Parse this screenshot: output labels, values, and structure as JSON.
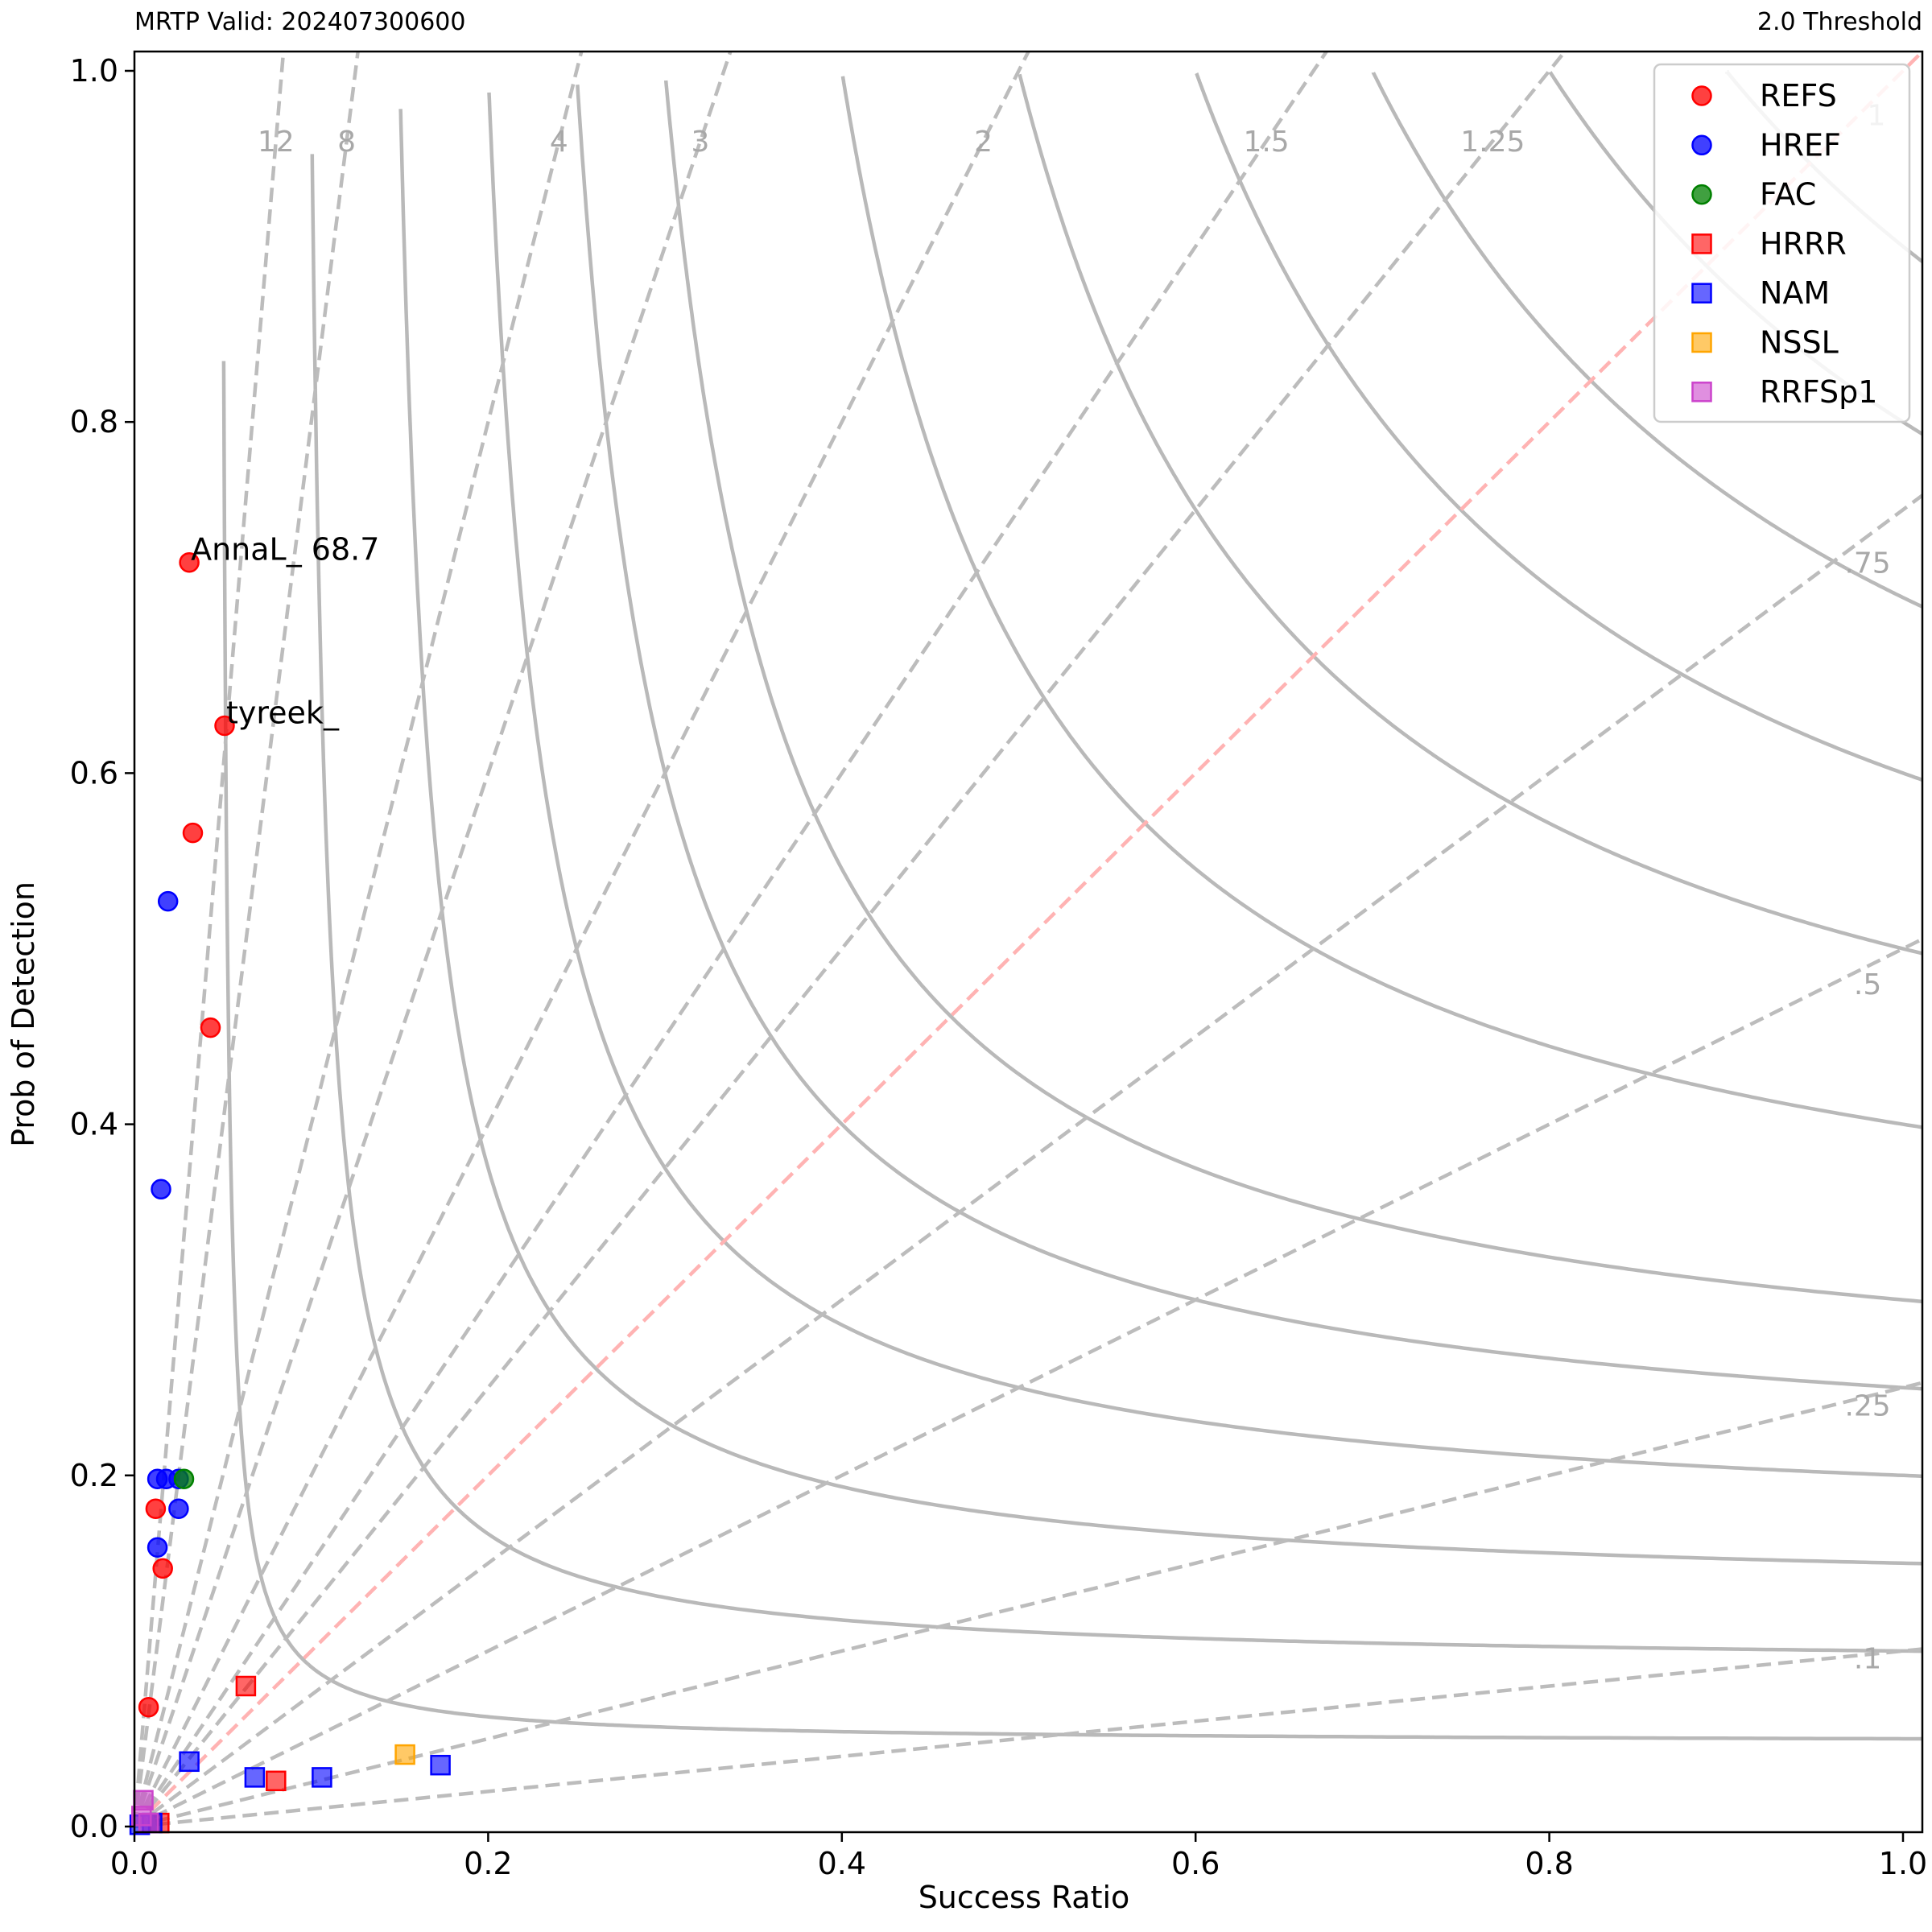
{
  "header": {
    "left_title": "MRTP Valid: 202407300600",
    "right_title": "2.0 Threshold"
  },
  "chart_data": {
    "type": "scatter",
    "xlabel": "Success Ratio",
    "ylabel": "Prob of Detection",
    "xlim": [
      0.0,
      1.0
    ],
    "ylim": [
      0.0,
      1.0
    ],
    "x_ticks": [
      "0.0",
      "0.2",
      "0.4",
      "0.6",
      "0.8",
      "1.0"
    ],
    "y_ticks": [
      "0.0",
      "0.2",
      "0.4",
      "0.6",
      "0.8",
      "1.0"
    ],
    "grid": false,
    "legend_position": "top-right",
    "bias_lines": [
      {
        "value": 12,
        "label": "12"
      },
      {
        "value": 8,
        "label": "8"
      },
      {
        "value": 4,
        "label": "4"
      },
      {
        "value": 3,
        "label": "3"
      },
      {
        "value": 2,
        "label": "2"
      },
      {
        "value": 1.5,
        "label": "1.5"
      },
      {
        "value": 1.25,
        "label": "1.25"
      },
      {
        "value": 1,
        "label": "1"
      },
      {
        "value": 0.75,
        "label": ".75"
      },
      {
        "value": 0.5,
        "label": ".5"
      },
      {
        "value": 0.25,
        "label": ".25"
      },
      {
        "value": 0.1,
        "label": ".1"
      }
    ],
    "csi_contours": [
      0.05,
      0.1,
      0.15,
      0.2,
      0.25,
      0.3,
      0.4,
      0.5,
      0.6,
      0.7,
      0.8,
      0.9
    ],
    "series": [
      {
        "name": "REFS",
        "marker": "circle",
        "color": "#ff0000",
        "points": [
          [
            0.031,
            0.72
          ],
          [
            0.051,
            0.627
          ],
          [
            0.033,
            0.566
          ],
          [
            0.043,
            0.455
          ],
          [
            0.012,
            0.181
          ],
          [
            0.016,
            0.147
          ],
          [
            0.008,
            0.068
          ]
        ]
      },
      {
        "name": "HREF",
        "marker": "circle",
        "color": "#0000ff",
        "points": [
          [
            0.019,
            0.527
          ],
          [
            0.015,
            0.363
          ],
          [
            0.013,
            0.198
          ],
          [
            0.018,
            0.198
          ],
          [
            0.025,
            0.198
          ],
          [
            0.025,
            0.181
          ],
          [
            0.013,
            0.159
          ]
        ]
      },
      {
        "name": "FAC",
        "marker": "circle",
        "color": "#008000",
        "points": [
          [
            0.028,
            0.198
          ]
        ]
      },
      {
        "name": "HRRR",
        "marker": "square",
        "color": "#ff0000",
        "points": [
          [
            0.063,
            0.08
          ],
          [
            0.08,
            0.026
          ],
          [
            0.014,
            0.002
          ]
        ]
      },
      {
        "name": "NAM",
        "marker": "square",
        "color": "#0000ff",
        "points": [
          [
            0.031,
            0.037
          ],
          [
            0.068,
            0.028
          ],
          [
            0.106,
            0.028
          ],
          [
            0.173,
            0.035
          ],
          [
            0.01,
            0.002
          ],
          [
            0.003,
            0.001
          ]
        ]
      },
      {
        "name": "NSSL",
        "marker": "square",
        "color": "#ffa500",
        "points": [
          [
            0.153,
            0.041
          ]
        ]
      },
      {
        "name": "RRFSp1",
        "marker": "square",
        "color": "#cc44cc",
        "points": [
          [
            0.005,
            0.015
          ],
          [
            0.004,
            0.006
          ],
          [
            0.008,
            0.002
          ]
        ]
      }
    ],
    "annotations": [
      {
        "text": "AnnaL_ 68.7",
        "x": 0.031,
        "y": 0.72
      },
      {
        "text": "tyreek_",
        "x": 0.051,
        "y": 0.627
      }
    ]
  }
}
